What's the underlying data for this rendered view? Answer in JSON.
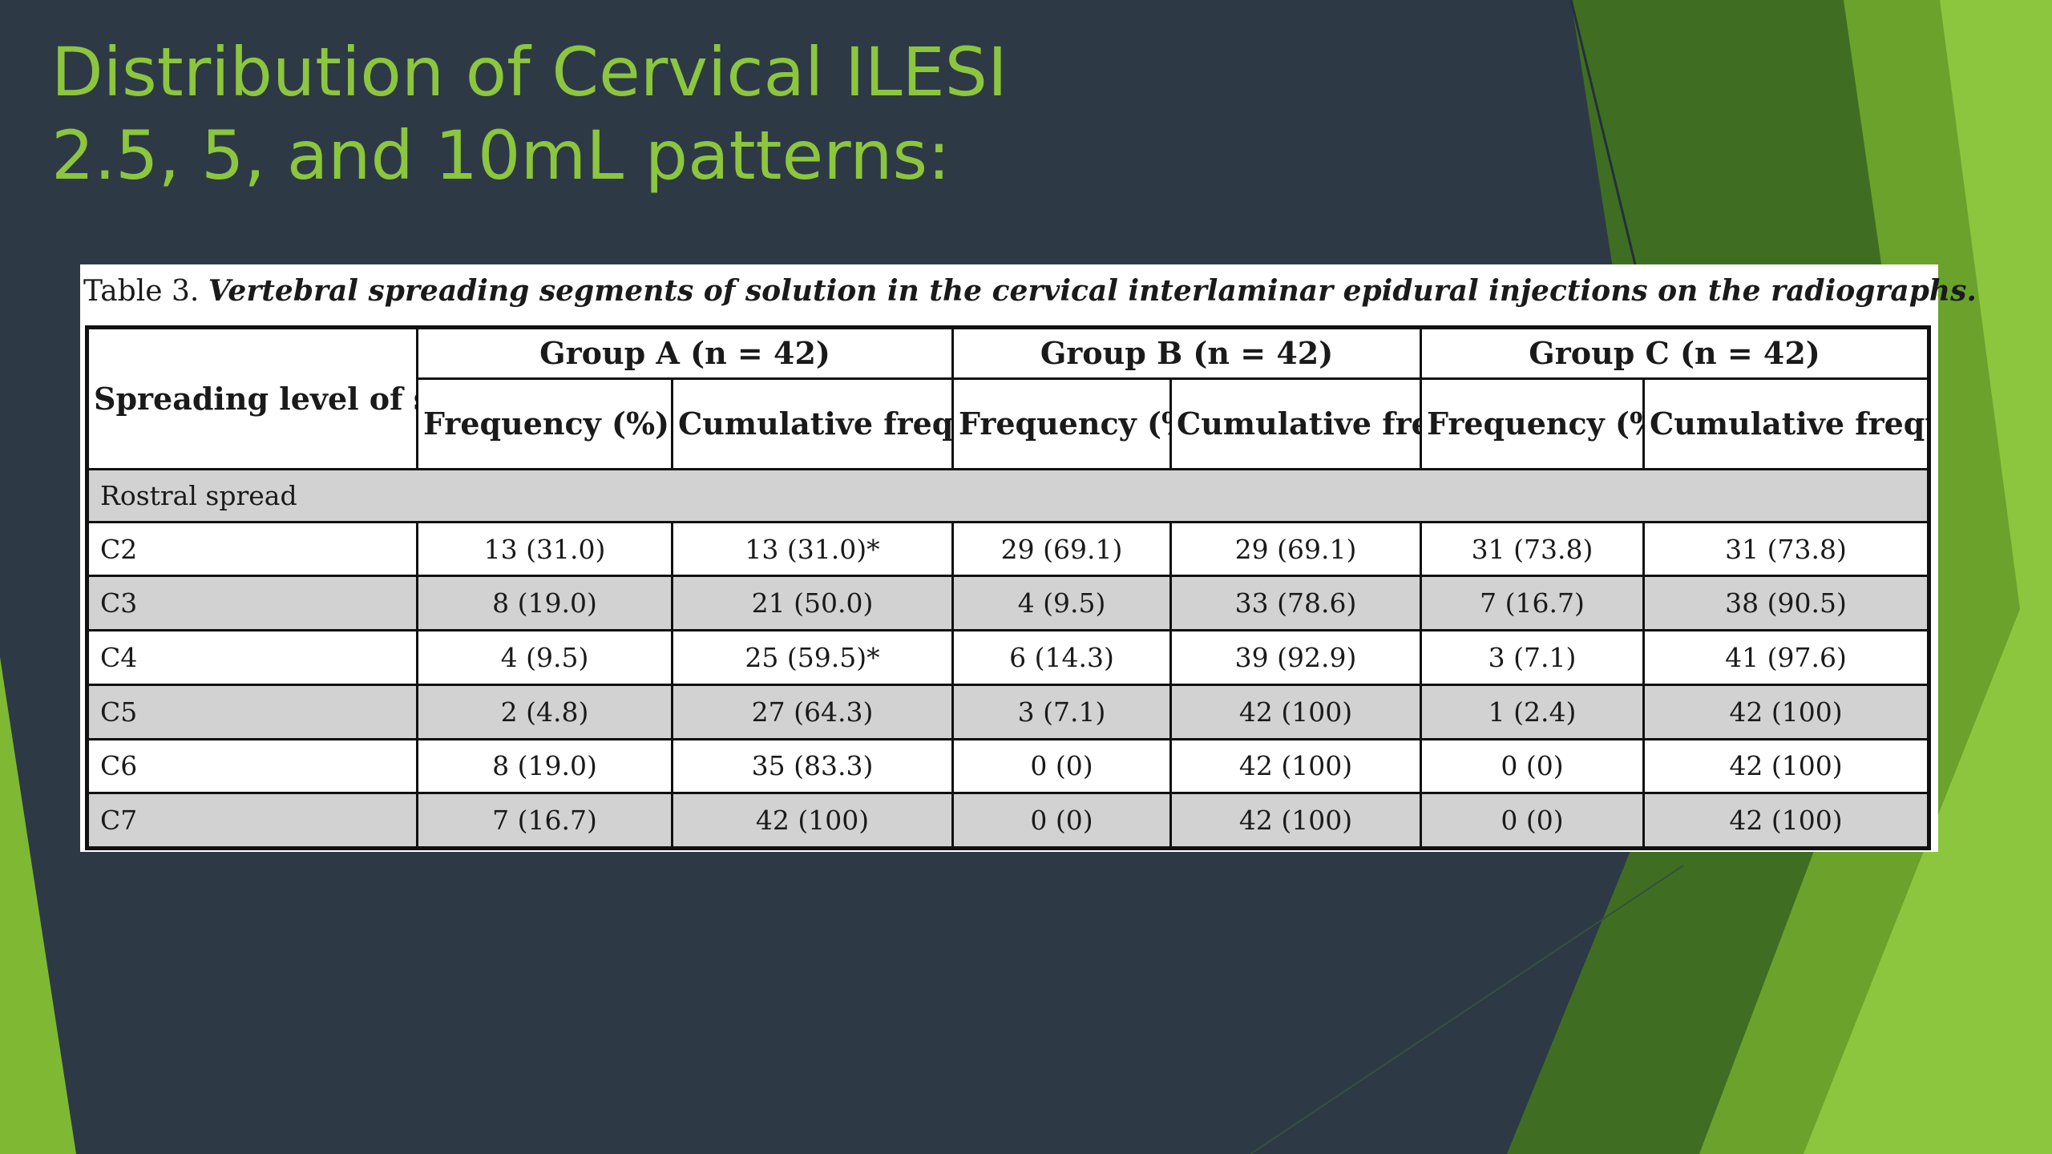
{
  "slide": {
    "title_line1": "Distribution of Cervical ILESI",
    "title_line2": "2.5, 5, and 10mL patterns:",
    "title_color": "#8cc63f",
    "background_color": "#2d3a45",
    "accent_colors": [
      "#8cc63f",
      "#6aa22c",
      "#3f6e22"
    ]
  },
  "table": {
    "caption_label": "Table 3.",
    "caption_text": "Vertebral spreading segments of solution in the cervical interlaminar epidural injections on the radiographs.",
    "level_header": "Spreading level of spine",
    "groups": [
      "Group A (n = 42)",
      "Group B (n = 42)",
      "Group C (n = 42)"
    ],
    "freq_header": "Frequency (%)",
    "cum_header": "Cumulative frequency (%)",
    "section_label": "Rostral spread",
    "rows": [
      {
        "level": "C2",
        "cells": [
          "13 (31.0)",
          "13 (31.0)*",
          "29 (69.1)",
          "29 (69.1)",
          "31 (73.8)",
          "31 (73.8)"
        ]
      },
      {
        "level": "C3",
        "cells": [
          "8 (19.0)",
          "21 (50.0)",
          "4 (9.5)",
          "33 (78.6)",
          "7 (16.7)",
          "38 (90.5)"
        ]
      },
      {
        "level": "C4",
        "cells": [
          "4 (9.5)",
          "25 (59.5)*",
          "6 (14.3)",
          "39 (92.9)",
          "3 (7.1)",
          "41 (97.6)"
        ]
      },
      {
        "level": "C5",
        "cells": [
          "2 (4.8)",
          "27 (64.3)",
          "3 (7.1)",
          "42 (100)",
          "1 (2.4)",
          "42 (100)"
        ]
      },
      {
        "level": "C6",
        "cells": [
          "8 (19.0)",
          "35 (83.3)",
          "0 (0)",
          "42 (100)",
          "0 (0)",
          "42 (100)"
        ]
      },
      {
        "level": "C7",
        "cells": [
          "7 (16.7)",
          "42 (100)",
          "0 (0)",
          "42 (100)",
          "0 (0)",
          "42 (100)"
        ]
      }
    ]
  }
}
